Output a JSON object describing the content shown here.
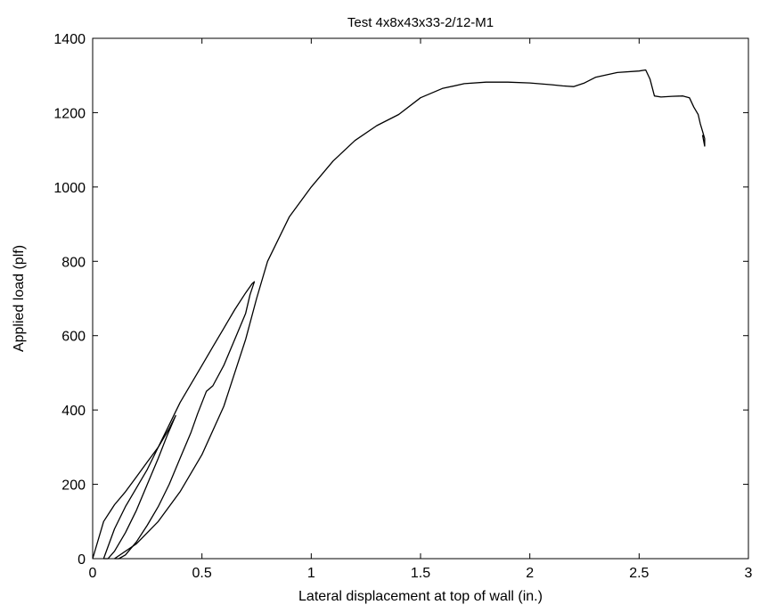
{
  "chart_data": {
    "type": "line",
    "title": "Test 4x8x43x33-2/12-M1",
    "xlabel": "Lateral displacement at top of wall (in.)",
    "ylabel": "Applied load (plf)",
    "xlim": [
      0,
      3
    ],
    "ylim": [
      0,
      1400
    ],
    "xticks": [
      0,
      0.5,
      1,
      1.5,
      2,
      2.5,
      3
    ],
    "xtick_labels": [
      "0",
      "0.5",
      "1",
      "1.5",
      "2",
      "2.5",
      "3"
    ],
    "yticks": [
      0,
      200,
      400,
      600,
      800,
      1000,
      1200,
      1400
    ],
    "ytick_labels": [
      "0",
      "200",
      "400",
      "600",
      "800",
      "1000",
      "1200",
      "1400"
    ],
    "grid": false,
    "line_color": "#000000",
    "series": [
      {
        "x": [
          0,
          0.05,
          0.1,
          0.15,
          0.2,
          0.25,
          0.3,
          0.35,
          0.38,
          0.34,
          0.3,
          0.25,
          0.2,
          0.15,
          0.1,
          0.07,
          0.05
        ],
        "y": [
          0,
          100,
          145,
          180,
          220,
          260,
          300,
          350,
          385,
          330,
          270,
          200,
          130,
          70,
          20,
          0,
          0
        ]
      },
      {
        "x": [
          0.05,
          0.1,
          0.15,
          0.2,
          0.25,
          0.3,
          0.35,
          0.4,
          0.45,
          0.5,
          0.55,
          0.6,
          0.65,
          0.7,
          0.73,
          0.74,
          0.72,
          0.7,
          0.65,
          0.6,
          0.55,
          0.52,
          0.5,
          0.48,
          0.45,
          0.4,
          0.35,
          0.3,
          0.25,
          0.2,
          0.15,
          0.12,
          0.1
        ],
        "y": [
          0,
          80,
          140,
          190,
          240,
          300,
          360,
          420,
          470,
          520,
          570,
          620,
          670,
          715,
          740,
          745,
          710,
          660,
          590,
          520,
          465,
          450,
          420,
          390,
          340,
          270,
          200,
          140,
          90,
          45,
          10,
          0,
          0
        ]
      },
      {
        "x": [
          0.1,
          0.2,
          0.3,
          0.4,
          0.5,
          0.6,
          0.7,
          0.75,
          0.8,
          0.9,
          1.0,
          1.1,
          1.2,
          1.3,
          1.4,
          1.5,
          1.6,
          1.7,
          1.8,
          1.9,
          2.0,
          2.1,
          2.15,
          2.2,
          2.25,
          2.3,
          2.4,
          2.5,
          2.53,
          2.55,
          2.57,
          2.6,
          2.65,
          2.7,
          2.73,
          2.75,
          2.77,
          2.78,
          2.79,
          2.8,
          2.8,
          2.79
        ],
        "y": [
          0,
          40,
          100,
          180,
          280,
          410,
          590,
          700,
          800,
          920,
          1000,
          1070,
          1125,
          1165,
          1195,
          1240,
          1265,
          1278,
          1282,
          1282,
          1280,
          1275,
          1272,
          1270,
          1280,
          1295,
          1308,
          1312,
          1315,
          1290,
          1245,
          1242,
          1244,
          1245,
          1240,
          1215,
          1195,
          1170,
          1150,
          1130,
          1110,
          1140
        ]
      }
    ]
  }
}
